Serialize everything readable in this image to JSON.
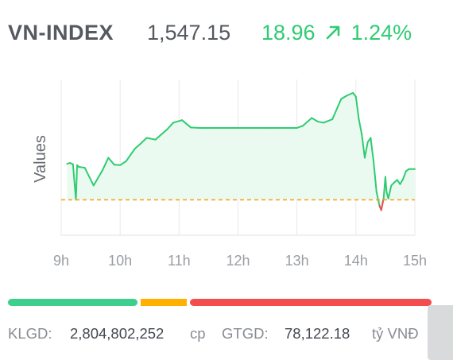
{
  "header": {
    "ticker": "VN-INDEX",
    "price": "1,547.15",
    "change": "18.96",
    "change_percent": "1.24%",
    "change_icon": "arrow-up-right-icon",
    "change_color": "#2ecc71"
  },
  "chart_data": {
    "type": "area",
    "ylabel": "Values",
    "x_tick_labels": [
      "9h",
      "10h",
      "11h",
      "12h",
      "13h",
      "14h",
      "15h"
    ],
    "x_hours_range": [
      9,
      15
    ],
    "reference_value": 1528.19,
    "reference_line_color": "#f5a623",
    "line_color": "#2ecc71",
    "fill_color": "#eafaf0",
    "below_reference_color": "#e84b4b",
    "grid": "vertical",
    "series": [
      {
        "x": [
          9.1,
          9.15,
          9.2,
          9.25,
          9.27,
          9.3,
          9.4,
          9.55,
          9.7,
          9.8,
          9.9,
          10.0,
          10.1,
          10.25,
          10.35,
          10.45,
          10.6,
          10.8,
          10.9,
          11.05,
          11.2,
          11.35,
          11.5,
          11.6,
          11.8,
          12.0,
          12.5,
          13.0,
          13.1,
          13.25,
          13.35,
          13.45,
          13.6,
          13.75,
          13.85,
          13.95,
          14.0,
          14.05,
          14.1,
          14.15,
          14.2,
          14.25,
          14.3,
          14.35,
          14.4,
          14.43,
          14.47,
          14.5,
          14.52,
          14.55,
          14.6,
          14.65,
          14.7,
          14.75,
          14.8,
          14.85,
          14.9,
          15.0
        ],
        "y": [
          1536.5,
          1536.7,
          1536.4,
          1528.2,
          1536.2,
          1535.8,
          1535.6,
          1531.5,
          1535.0,
          1537.9,
          1536.3,
          1536.2,
          1537.1,
          1540.0,
          1541.2,
          1542.5,
          1542.1,
          1544.5,
          1546.0,
          1546.6,
          1544.9,
          1544.8,
          1544.8,
          1544.8,
          1544.8,
          1544.8,
          1544.8,
          1544.8,
          1545.3,
          1547.1,
          1546.3,
          1546.0,
          1546.8,
          1551.5,
          1552.3,
          1552.9,
          1552.0,
          1546.8,
          1543.3,
          1537.9,
          1541.5,
          1542.5,
          1537.0,
          1530.0,
          1526.8,
          1525.8,
          1528.5,
          1533.5,
          1530.0,
          1528.5,
          1531.5,
          1532.2,
          1532.8,
          1531.8,
          1533.0,
          1534.8,
          1535.3,
          1535.3
        ]
      }
    ]
  },
  "progress": {
    "fractions": [
      0.31,
      0.11,
      0.58
    ],
    "colors": [
      "#3ecf8e",
      "#ffb000",
      "#f44d4d"
    ]
  },
  "footer": {
    "volume_label": "KLGD:",
    "volume_value": "2,804,802,252",
    "volume_unit": "cp",
    "value_label": "GTGD:",
    "value_value": "78,122.18",
    "value_unit": "tỷ VNĐ"
  }
}
